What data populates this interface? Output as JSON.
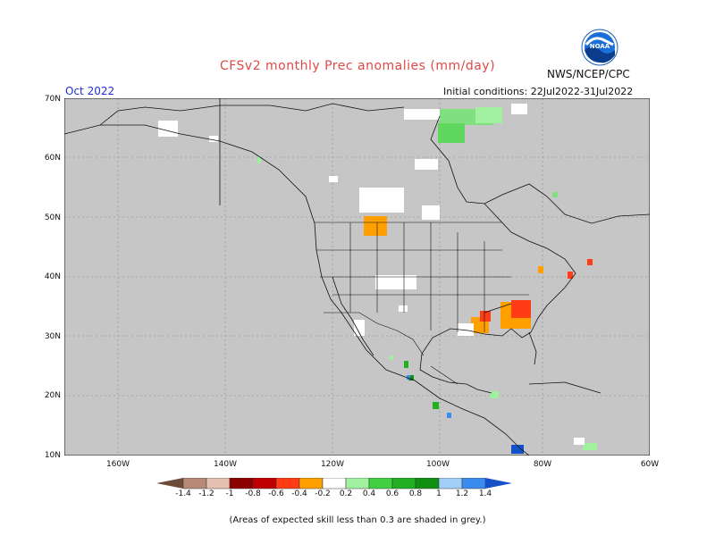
{
  "title": "CFSv2 monthly Prec anomalies (mm/day)",
  "org": "NWS/NCEP/CPC",
  "logo_text": "NOAA",
  "month": "Oct 2022",
  "initial_conditions": "Initial conditions: 22Jul2022-31Jul2022",
  "lat_labels": [
    "70N",
    "60N",
    "50N",
    "40N",
    "30N",
    "20N",
    "10N"
  ],
  "lon_labels": [
    "160W",
    "140W",
    "120W",
    "100W",
    "80W",
    "60W"
  ],
  "colorbar_labels": [
    "-1.4",
    "-1.2",
    "-1",
    "-0.8",
    "-0.6",
    "-0.4",
    "-0.2",
    "0.2",
    "0.4",
    "0.6",
    "0.8",
    "1",
    "1.2",
    "1.4"
  ],
  "colorbar_colors": [
    "#6e4a3a",
    "#b78a78",
    "#e4c0b0",
    "#8b0000",
    "#c00000",
    "#ff3c14",
    "#ffa000",
    "#ffffff",
    "#a0f0a0",
    "#40d040",
    "#20b020",
    "#109010",
    "#a0d0f8",
    "#3c8cf0",
    "#1450c8"
  ],
  "background_color": "#c6c6c6",
  "note": "(Areas of expected skill less than 0.3 are shaded in grey.)"
}
